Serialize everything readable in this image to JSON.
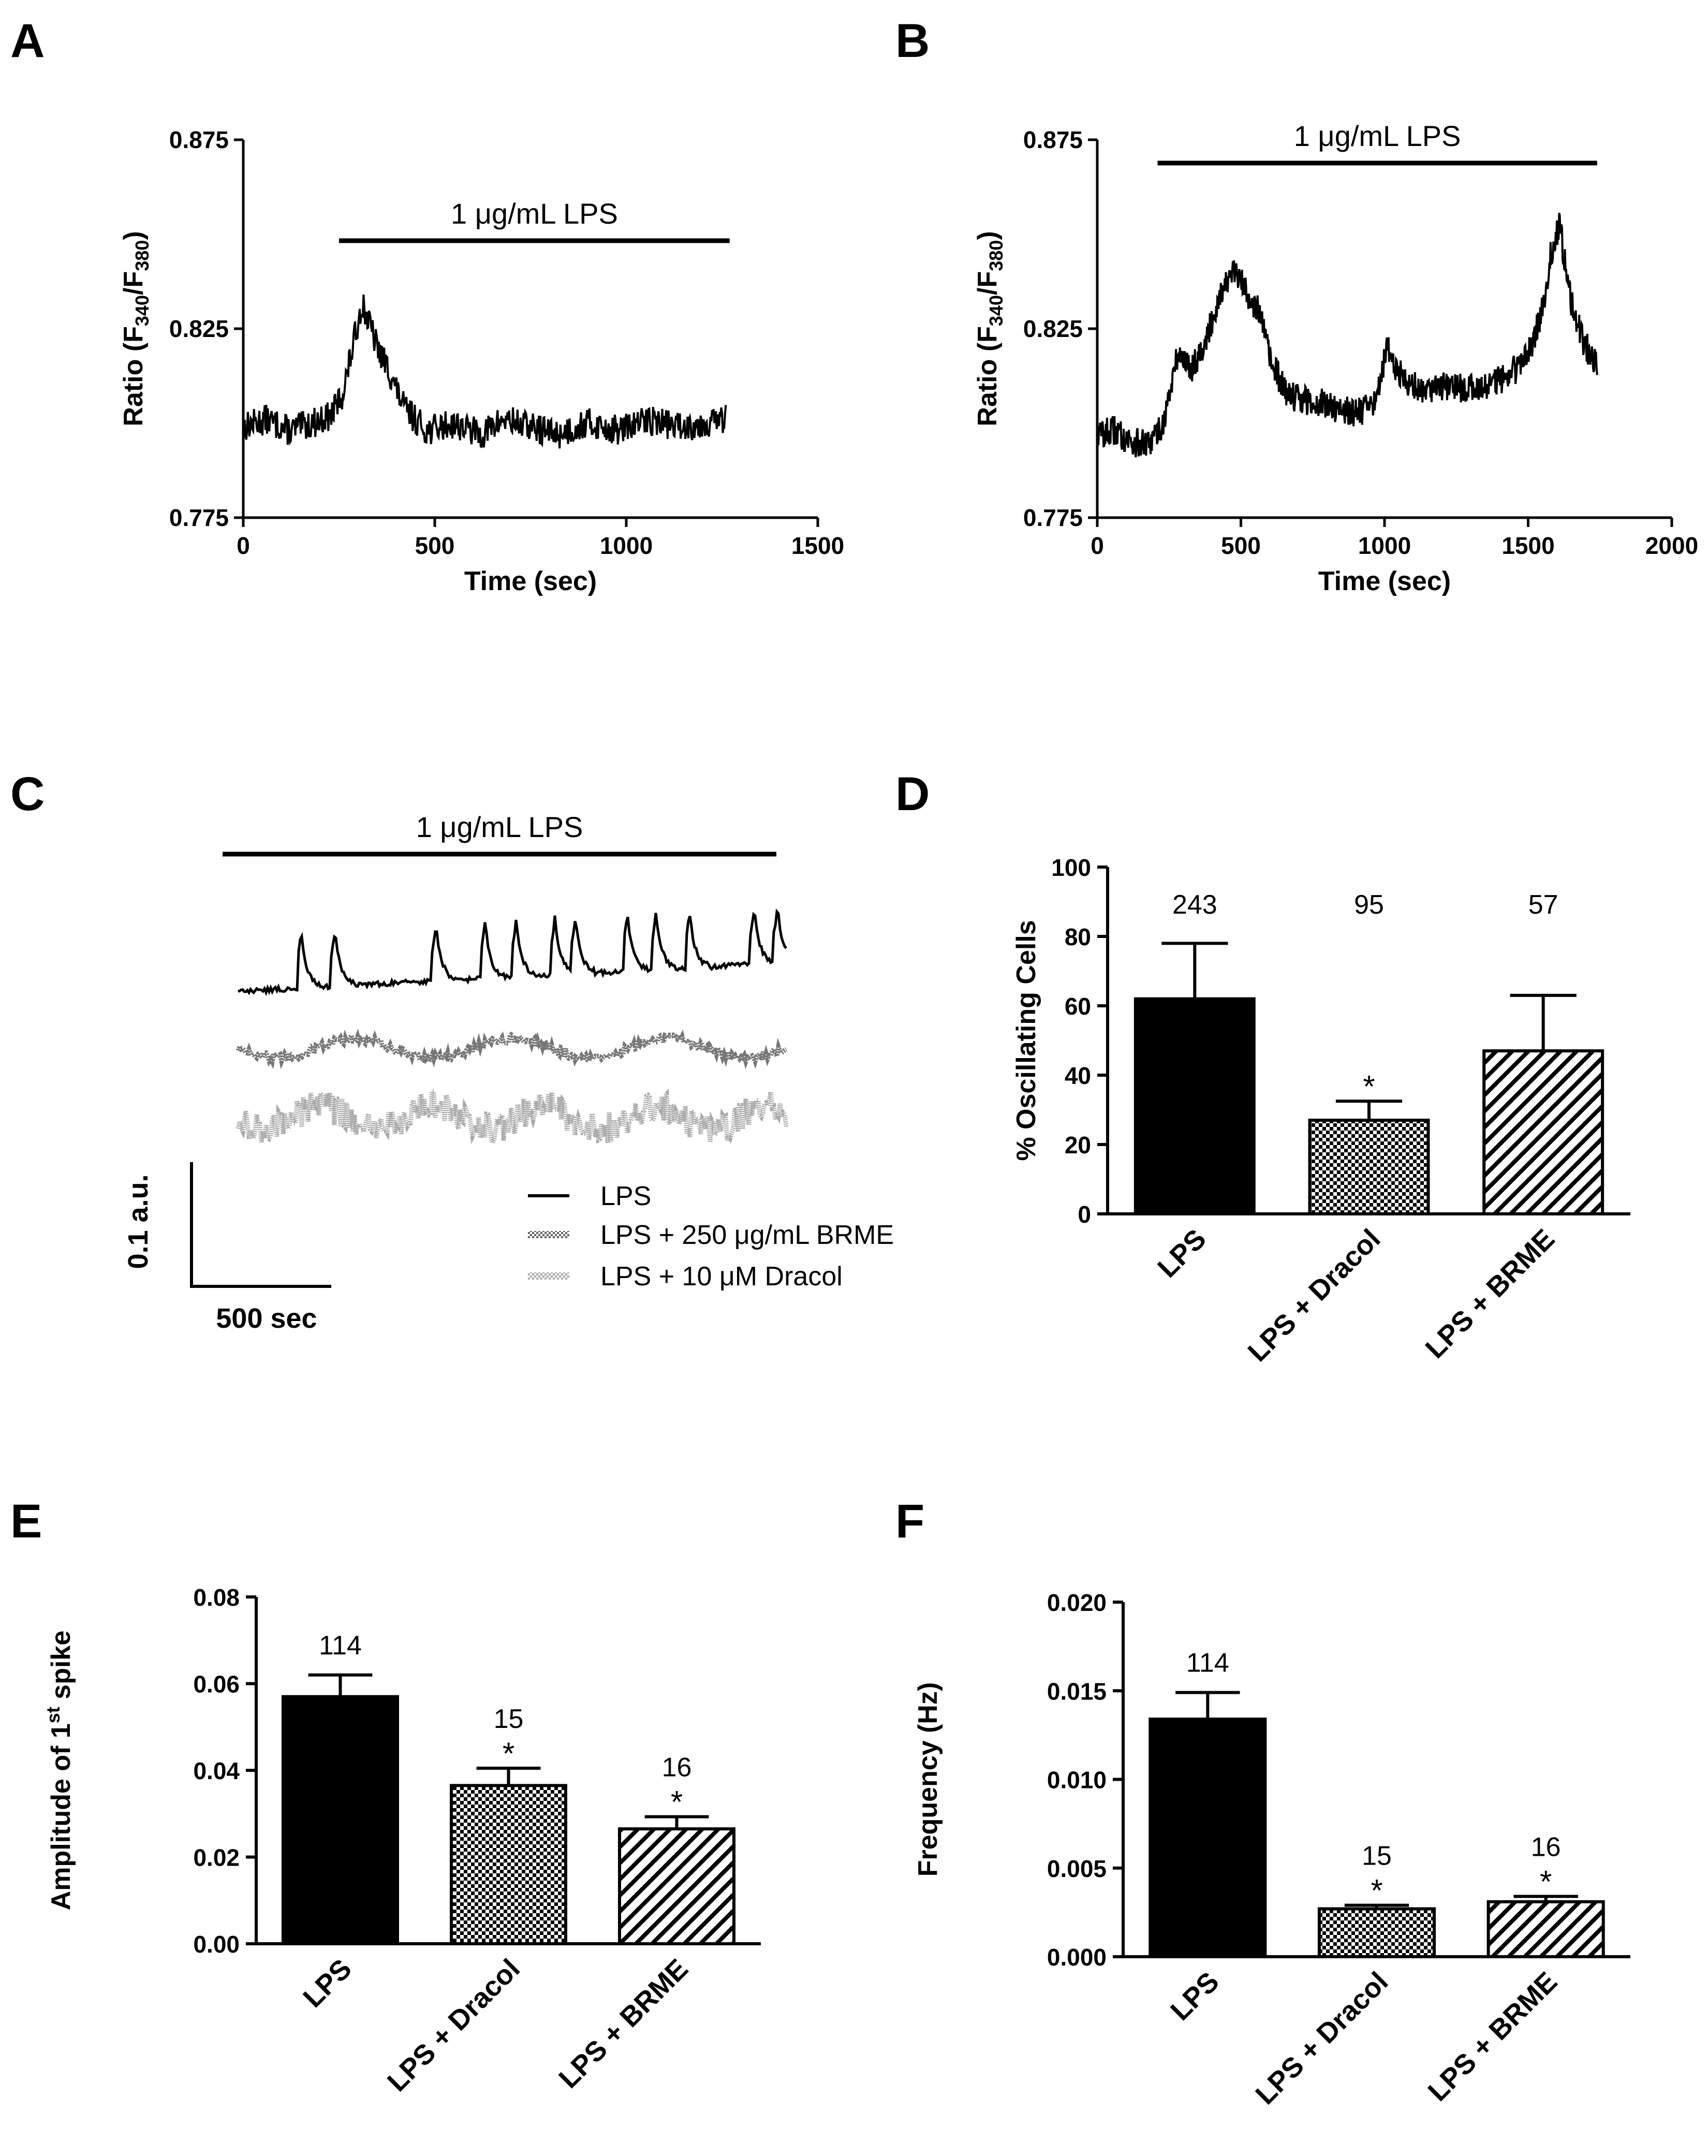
{
  "chart_data": [
    {
      "panel": "A",
      "type": "line",
      "annotation": "1 μg/mL LPS",
      "xlabel": "Time (sec)",
      "ylabel_main": "Ratio (F",
      "ylabel_sub1": "340",
      "ylabel_mid": "/F",
      "ylabel_sub2": "380",
      "ylabel_end": ")",
      "xlim": [
        0,
        1500
      ],
      "ylim": [
        0.775,
        0.875
      ],
      "xticks": [
        "0",
        "500",
        "1000",
        "1500"
      ],
      "yticks": [
        "0.775",
        "0.825",
        "0.875"
      ],
      "stimulus": [
        250,
        1270
      ],
      "trace_x": [
        0,
        60,
        120,
        180,
        230,
        260,
        290,
        310,
        330,
        350,
        380,
        420,
        480,
        550,
        620,
        680,
        750,
        820,
        900,
        980,
        1060,
        1140,
        1200,
        1260
      ],
      "trace_y": [
        0.799,
        0.801,
        0.798,
        0.8,
        0.802,
        0.808,
        0.822,
        0.832,
        0.826,
        0.82,
        0.814,
        0.804,
        0.798,
        0.8,
        0.797,
        0.801,
        0.799,
        0.797,
        0.8,
        0.798,
        0.801,
        0.799,
        0.8,
        0.801
      ]
    },
    {
      "panel": "B",
      "type": "line",
      "annotation": "1 μg/mL LPS",
      "xlabel": "Time (sec)",
      "ylabel_main": "Ratio (F",
      "ylabel_sub1": "340",
      "ylabel_mid": "/F",
      "ylabel_sub2": "380",
      "ylabel_end": ")",
      "xlim": [
        0,
        2000
      ],
      "ylim": [
        0.775,
        0.875
      ],
      "xticks": [
        "0",
        "500",
        "1000",
        "1500",
        "2000"
      ],
      "yticks": [
        "0.775",
        "0.825",
        "0.875"
      ],
      "stimulus": [
        210,
        1740
      ],
      "trace_x": [
        0,
        60,
        120,
        180,
        230,
        280,
        330,
        380,
        430,
        480,
        510,
        560,
        610,
        660,
        720,
        800,
        880,
        960,
        1010,
        1050,
        1120,
        1200,
        1280,
        1360,
        1440,
        1500,
        1550,
        1580,
        1610,
        1640,
        1690,
        1740
      ],
      "trace_y": [
        0.797,
        0.798,
        0.795,
        0.794,
        0.8,
        0.818,
        0.815,
        0.822,
        0.835,
        0.84,
        0.836,
        0.83,
        0.815,
        0.808,
        0.806,
        0.805,
        0.803,
        0.804,
        0.82,
        0.813,
        0.809,
        0.81,
        0.809,
        0.81,
        0.813,
        0.818,
        0.83,
        0.845,
        0.853,
        0.835,
        0.822,
        0.815
      ]
    },
    {
      "panel": "C",
      "type": "line",
      "annotation": "1 μg/mL LPS",
      "legend": [
        "LPS",
        "LPS + 250 μg/mL BRME",
        "LPS + 10 μM Dracol"
      ],
      "scalebar_y": "0.1 a.u.",
      "scalebar_x": "500 sec"
    },
    {
      "panel": "D",
      "type": "bar",
      "categories": [
        "LPS",
        "LPS + Dracol",
        "LPS + BRME"
      ],
      "values": [
        62,
        27,
        47
      ],
      "errors": [
        16,
        5.5,
        16
      ],
      "n": [
        "243",
        "95",
        "57"
      ],
      "significance": [
        "",
        "*",
        ""
      ],
      "patterns": [
        "solid",
        "checker",
        "hatch"
      ],
      "ylabel": "% Oscillating Cells",
      "ylim": [
        0,
        100
      ],
      "yticks": [
        "0",
        "20",
        "40",
        "60",
        "80",
        "100"
      ]
    },
    {
      "panel": "E",
      "type": "bar",
      "categories": [
        "LPS",
        "LPS + Dracol",
        "LPS + BRME"
      ],
      "values": [
        0.057,
        0.0365,
        0.0265
      ],
      "errors": [
        0.005,
        0.004,
        0.0028
      ],
      "n": [
        "114",
        "15",
        "16"
      ],
      "significance": [
        "",
        "*",
        "*"
      ],
      "patterns": [
        "solid",
        "checker",
        "hatch"
      ],
      "ylabel_pre": "Amplitude of 1",
      "ylabel_sup": "st",
      "ylabel_post": " spike",
      "ylim": [
        0,
        0.08
      ],
      "yticks": [
        "0.00",
        "0.02",
        "0.04",
        "0.06",
        "0.08"
      ]
    },
    {
      "panel": "F",
      "type": "bar",
      "categories": [
        "LPS",
        "LPS + Dracol",
        "LPS + BRME"
      ],
      "values": [
        0.0134,
        0.0027,
        0.0031
      ],
      "errors": [
        0.0015,
        0.0002,
        0.0003
      ],
      "n": [
        "114",
        "15",
        "16"
      ],
      "significance": [
        "",
        "*",
        "*"
      ],
      "patterns": [
        "solid",
        "checker",
        "hatch"
      ],
      "ylabel": "Frequency (Hz)",
      "ylim": [
        0,
        0.02
      ],
      "yticks": [
        "0.000",
        "0.005",
        "0.010",
        "0.015",
        "0.020"
      ]
    }
  ]
}
